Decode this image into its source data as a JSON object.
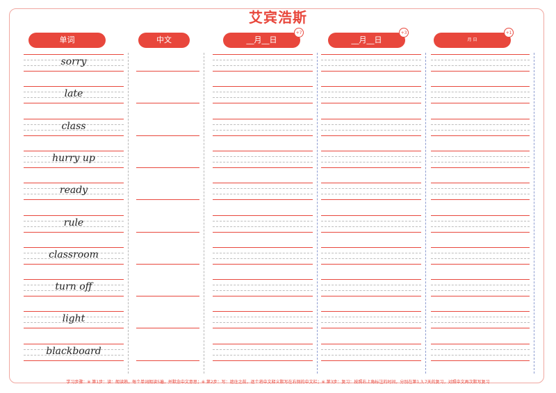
{
  "page": {
    "title": "艾宾浩斯"
  },
  "headers": {
    "word_label": "单词",
    "chinese_label": "中文",
    "review1_label": "__月__日",
    "review1_badge": "+7",
    "review2_label": "__月__日",
    "review2_badge": "+3",
    "review3_label": "月   日",
    "review3_badge": "+1"
  },
  "words": [
    "sorry",
    "late",
    "class",
    "hurry up",
    "ready",
    "rule",
    "classroom",
    "turn off",
    "light",
    "blackboard"
  ],
  "footer": {
    "instructions": "学习步骤：※ 第1步：读：朗读熟，每个单词朗读5遍，并默念中文意思；※ 第2步：写：遮住之前，逐个将中文释义默写在右侧的中文栏；※ 第3步：复习：按照右上角标注的时间，分别在第1,3,7天的复习，对照中文再次默写复习"
  },
  "colors": {
    "accent": "#e8473c",
    "border": "#f0a7a0",
    "dash": "#bdbdbd"
  }
}
